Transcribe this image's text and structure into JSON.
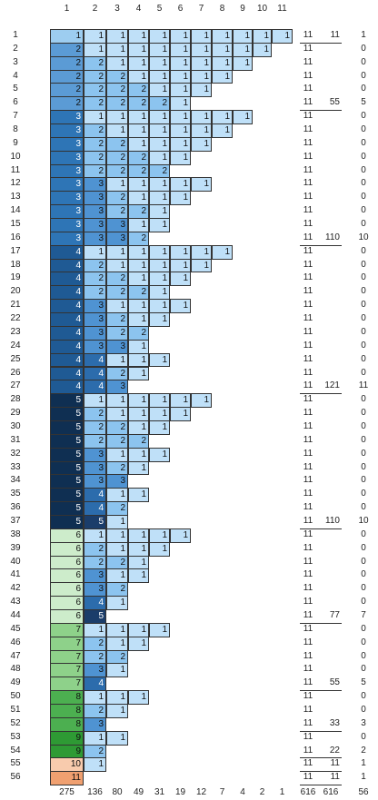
{
  "header": {
    "columns": [
      1,
      2,
      3,
      4,
      5,
      6,
      7,
      8,
      9,
      10,
      11
    ]
  },
  "palette_first": [
    "#9dcdf0",
    "#5b9bd5",
    "#2e75b6",
    "#1f5a94",
    "#0f2f52",
    "#cdeccb",
    "#8ed18a",
    "#4caf50",
    "#2e9a34",
    "#f8cbad",
    "#f0a070"
  ],
  "palette_other": [
    "#bfe0f8",
    "#8cc4ef",
    "#4f93d2",
    "#2c6cac",
    "#1b3d6a"
  ],
  "rows": [
    {
      "label": 1,
      "parts": [
        1,
        1,
        1,
        1,
        1,
        1,
        1,
        1,
        1,
        1,
        1
      ],
      "total": 11,
      "group": 11,
      "count": 1
    },
    {
      "label": 2,
      "parts": [
        2,
        1,
        1,
        1,
        1,
        1,
        1,
        1,
        1,
        1
      ],
      "total": 11,
      "count": 0
    },
    {
      "label": 3,
      "parts": [
        2,
        2,
        1,
        1,
        1,
        1,
        1,
        1,
        1
      ],
      "total": 11,
      "count": 0
    },
    {
      "label": 4,
      "parts": [
        2,
        2,
        2,
        1,
        1,
        1,
        1,
        1
      ],
      "total": 11,
      "count": 0
    },
    {
      "label": 5,
      "parts": [
        2,
        2,
        2,
        2,
        1,
        1,
        1
      ],
      "total": 11,
      "count": 0
    },
    {
      "label": 6,
      "parts": [
        2,
        2,
        2,
        2,
        2,
        1
      ],
      "total": 11,
      "group": 55,
      "count": 5
    },
    {
      "label": 7,
      "parts": [
        3,
        1,
        1,
        1,
        1,
        1,
        1,
        1,
        1
      ],
      "total": 11,
      "count": 0
    },
    {
      "label": 8,
      "parts": [
        3,
        2,
        1,
        1,
        1,
        1,
        1,
        1
      ],
      "total": 11,
      "count": 0
    },
    {
      "label": 9,
      "parts": [
        3,
        2,
        2,
        1,
        1,
        1,
        1
      ],
      "total": 11,
      "count": 0
    },
    {
      "label": 10,
      "parts": [
        3,
        2,
        2,
        2,
        1,
        1
      ],
      "total": 11,
      "count": 0
    },
    {
      "label": 11,
      "parts": [
        3,
        2,
        2,
        2,
        2
      ],
      "total": 11,
      "count": 0
    },
    {
      "label": 12,
      "parts": [
        3,
        3,
        1,
        1,
        1,
        1,
        1
      ],
      "total": 11,
      "count": 0
    },
    {
      "label": 13,
      "parts": [
        3,
        3,
        2,
        1,
        1,
        1
      ],
      "total": 11,
      "count": 0
    },
    {
      "label": 14,
      "parts": [
        3,
        3,
        2,
        2,
        1
      ],
      "total": 11,
      "count": 0
    },
    {
      "label": 15,
      "parts": [
        3,
        3,
        3,
        1,
        1
      ],
      "total": 11,
      "count": 0
    },
    {
      "label": 16,
      "parts": [
        3,
        3,
        3,
        2
      ],
      "total": 11,
      "group": 110,
      "count": 10
    },
    {
      "label": 17,
      "parts": [
        4,
        1,
        1,
        1,
        1,
        1,
        1,
        1
      ],
      "total": 11,
      "count": 0
    },
    {
      "label": 18,
      "parts": [
        4,
        2,
        1,
        1,
        1,
        1,
        1
      ],
      "total": 11,
      "count": 0
    },
    {
      "label": 19,
      "parts": [
        4,
        2,
        2,
        1,
        1,
        1
      ],
      "total": 11,
      "count": 0
    },
    {
      "label": 20,
      "parts": [
        4,
        2,
        2,
        2,
        1
      ],
      "total": 11,
      "count": 0
    },
    {
      "label": 21,
      "parts": [
        4,
        3,
        1,
        1,
        1,
        1
      ],
      "total": 11,
      "count": 0
    },
    {
      "label": 22,
      "parts": [
        4,
        3,
        2,
        1,
        1
      ],
      "total": 11,
      "count": 0
    },
    {
      "label": 23,
      "parts": [
        4,
        3,
        2,
        2
      ],
      "total": 11,
      "count": 0
    },
    {
      "label": 24,
      "parts": [
        4,
        3,
        3,
        1
      ],
      "total": 11,
      "count": 0
    },
    {
      "label": 25,
      "parts": [
        4,
        4,
        1,
        1,
        1
      ],
      "total": 11,
      "count": 0
    },
    {
      "label": 26,
      "parts": [
        4,
        4,
        2,
        1
      ],
      "total": 11,
      "count": 0
    },
    {
      "label": 27,
      "parts": [
        4,
        4,
        3
      ],
      "total": 11,
      "group": 121,
      "count": 11
    },
    {
      "label": 28,
      "parts": [
        5,
        1,
        1,
        1,
        1,
        1,
        1
      ],
      "total": 11,
      "count": 0
    },
    {
      "label": 29,
      "parts": [
        5,
        2,
        1,
        1,
        1,
        1
      ],
      "total": 11,
      "count": 0
    },
    {
      "label": 30,
      "parts": [
        5,
        2,
        2,
        1,
        1
      ],
      "total": 11,
      "count": 0
    },
    {
      "label": 31,
      "parts": [
        5,
        2,
        2,
        2
      ],
      "total": 11,
      "count": 0
    },
    {
      "label": 32,
      "parts": [
        5,
        3,
        1,
        1,
        1
      ],
      "total": 11,
      "count": 0
    },
    {
      "label": 33,
      "parts": [
        5,
        3,
        2,
        1
      ],
      "total": 11,
      "count": 0
    },
    {
      "label": 34,
      "parts": [
        5,
        3,
        3
      ],
      "total": 11,
      "count": 0
    },
    {
      "label": 35,
      "parts": [
        5,
        4,
        1,
        1
      ],
      "total": 11,
      "count": 0
    },
    {
      "label": 36,
      "parts": [
        5,
        4,
        2
      ],
      "total": 11,
      "count": 0
    },
    {
      "label": 37,
      "parts": [
        5,
        5,
        1
      ],
      "total": 11,
      "group": 110,
      "count": 10
    },
    {
      "label": 38,
      "parts": [
        6,
        1,
        1,
        1,
        1,
        1
      ],
      "total": 11,
      "count": 0
    },
    {
      "label": 39,
      "parts": [
        6,
        2,
        1,
        1,
        1
      ],
      "total": 11,
      "count": 0
    },
    {
      "label": 40,
      "parts": [
        6,
        2,
        2,
        1
      ],
      "total": 11,
      "count": 0
    },
    {
      "label": 41,
      "parts": [
        6,
        3,
        1,
        1
      ],
      "total": 11,
      "count": 0
    },
    {
      "label": 42,
      "parts": [
        6,
        3,
        2
      ],
      "total": 11,
      "count": 0
    },
    {
      "label": 43,
      "parts": [
        6,
        4,
        1
      ],
      "total": 11,
      "count": 0
    },
    {
      "label": 44,
      "parts": [
        6,
        5
      ],
      "total": 11,
      "group": 77,
      "count": 7
    },
    {
      "label": 45,
      "parts": [
        7,
        1,
        1,
        1,
        1
      ],
      "total": 11,
      "count": 0
    },
    {
      "label": 46,
      "parts": [
        7,
        2,
        1,
        1
      ],
      "total": 11,
      "count": 0
    },
    {
      "label": 47,
      "parts": [
        7,
        2,
        2
      ],
      "total": 11,
      "count": 0
    },
    {
      "label": 48,
      "parts": [
        7,
        3,
        1
      ],
      "total": 11,
      "count": 0
    },
    {
      "label": 49,
      "parts": [
        7,
        4
      ],
      "total": 11,
      "group": 55,
      "count": 5
    },
    {
      "label": 50,
      "parts": [
        8,
        1,
        1,
        1
      ],
      "total": 11,
      "count": 0
    },
    {
      "label": 51,
      "parts": [
        8,
        2,
        1
      ],
      "total": 11,
      "count": 0
    },
    {
      "label": 52,
      "parts": [
        8,
        3
      ],
      "total": 11,
      "group": 33,
      "count": 3
    },
    {
      "label": 53,
      "parts": [
        9,
        1,
        1
      ],
      "total": 11,
      "count": 0
    },
    {
      "label": 54,
      "parts": [
        9,
        2
      ],
      "total": 11,
      "group": 22,
      "count": 2
    },
    {
      "label": 55,
      "parts": [
        10,
        1
      ],
      "total": 11,
      "group": 11,
      "count": 1
    },
    {
      "label": 56,
      "parts": [
        11
      ],
      "total": 11,
      "group": 11,
      "count": 1
    }
  ],
  "footer": {
    "column_totals": [
      275,
      136,
      80,
      49,
      31,
      19,
      12,
      7,
      4,
      2,
      1
    ],
    "total": 616,
    "group": 616,
    "count": 56
  }
}
